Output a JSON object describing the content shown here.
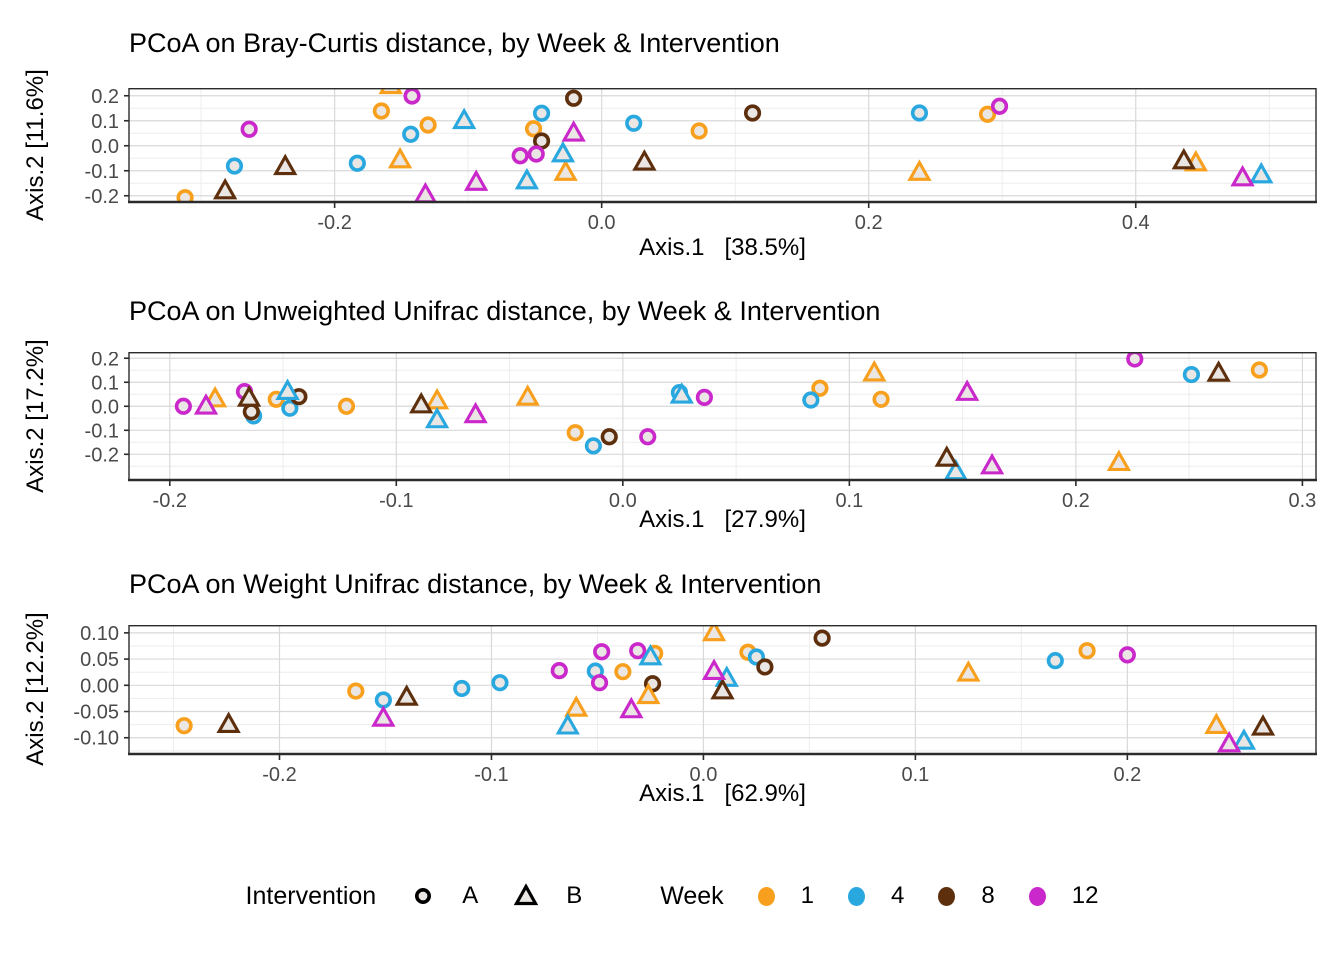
{
  "figure": {
    "background": "#ffffff",
    "marker_fill": "#e9e6e3",
    "grid_major_color": "#d9d9d9",
    "grid_minor_color": "#ededed",
    "panel_border_color": "#2b2b2b",
    "tick_label_color": "#4a4a4a"
  },
  "legend": {
    "intervention_title": "Intervention",
    "a_label": "A",
    "b_label": "B",
    "week_title": "Week",
    "week_items": [
      {
        "label": "1",
        "color": "#f8a01d"
      },
      {
        "label": "4",
        "color": "#29a8e0"
      },
      {
        "label": "8",
        "color": "#5d2f0d"
      },
      {
        "label": "12",
        "color": "#ca28ca"
      }
    ]
  },
  "chart_data": [
    {
      "type": "scatter",
      "title": "PCoA on Bray-Curtis distance, by Week & Intervention",
      "xlabel": "Axis.1   [38.5%]",
      "ylabel": "Axis.2   [11.6%]",
      "xlim": [
        -0.354,
        0.535
      ],
      "ylim": [
        -0.225,
        0.231
      ],
      "xticks": [
        {
          "v": -0.2,
          "label": "-0.2"
        },
        {
          "v": 0.0,
          "label": "0.0"
        },
        {
          "v": 0.2,
          "label": "0.2"
        },
        {
          "v": 0.4,
          "label": "0.4"
        }
      ],
      "yticks": [
        {
          "v": 0.2,
          "label": "0.2"
        },
        {
          "v": 0.1,
          "label": "0.1"
        },
        {
          "v": 0.0,
          "label": "0.0"
        },
        {
          "v": -0.1,
          "label": "-0.1"
        },
        {
          "v": -0.2,
          "label": "-0.2"
        }
      ],
      "legend_position": "bottom-shared",
      "grid": true,
      "points": [
        {
          "x": -0.312,
          "y": -0.208,
          "week": "1",
          "intervention": "A"
        },
        {
          "x": -0.165,
          "y": 0.139,
          "week": "1",
          "intervention": "A"
        },
        {
          "x": -0.13,
          "y": 0.083,
          "week": "1",
          "intervention": "A"
        },
        {
          "x": -0.051,
          "y": 0.068,
          "week": "1",
          "intervention": "A"
        },
        {
          "x": 0.073,
          "y": 0.059,
          "week": "1",
          "intervention": "A"
        },
        {
          "x": 0.289,
          "y": 0.126,
          "week": "1",
          "intervention": "A"
        },
        {
          "x": -0.275,
          "y": -0.081,
          "week": "4",
          "intervention": "A"
        },
        {
          "x": -0.183,
          "y": -0.07,
          "week": "4",
          "intervention": "A"
        },
        {
          "x": -0.143,
          "y": 0.046,
          "week": "4",
          "intervention": "A"
        },
        {
          "x": -0.045,
          "y": 0.13,
          "week": "4",
          "intervention": "A"
        },
        {
          "x": 0.024,
          "y": 0.09,
          "week": "4",
          "intervention": "A"
        },
        {
          "x": 0.238,
          "y": 0.131,
          "week": "4",
          "intervention": "A"
        },
        {
          "x": -0.045,
          "y": 0.019,
          "week": "8",
          "intervention": "A"
        },
        {
          "x": -0.021,
          "y": 0.19,
          "week": "8",
          "intervention": "A"
        },
        {
          "x": 0.113,
          "y": 0.131,
          "week": "8",
          "intervention": "A"
        },
        {
          "x": -0.264,
          "y": 0.066,
          "week": "12",
          "intervention": "A"
        },
        {
          "x": -0.142,
          "y": 0.199,
          "week": "12",
          "intervention": "A"
        },
        {
          "x": -0.061,
          "y": -0.04,
          "week": "12",
          "intervention": "A"
        },
        {
          "x": -0.049,
          "y": -0.033,
          "week": "12",
          "intervention": "A"
        },
        {
          "x": 0.298,
          "y": 0.158,
          "week": "12",
          "intervention": "A"
        },
        {
          "x": -0.158,
          "y": 0.24,
          "week": "1",
          "intervention": "B"
        },
        {
          "x": -0.151,
          "y": -0.057,
          "week": "1",
          "intervention": "B"
        },
        {
          "x": -0.027,
          "y": -0.107,
          "week": "1",
          "intervention": "B"
        },
        {
          "x": 0.238,
          "y": -0.107,
          "week": "1",
          "intervention": "B"
        },
        {
          "x": 0.445,
          "y": -0.069,
          "week": "1",
          "intervention": "B"
        },
        {
          "x": -0.103,
          "y": 0.1,
          "week": "4",
          "intervention": "B"
        },
        {
          "x": -0.056,
          "y": -0.141,
          "week": "4",
          "intervention": "B"
        },
        {
          "x": -0.029,
          "y": -0.033,
          "week": "4",
          "intervention": "B"
        },
        {
          "x": 0.494,
          "y": -0.117,
          "week": "4",
          "intervention": "B"
        },
        {
          "x": -0.282,
          "y": -0.181,
          "week": "8",
          "intervention": "B"
        },
        {
          "x": -0.237,
          "y": -0.084,
          "week": "8",
          "intervention": "B"
        },
        {
          "x": 0.032,
          "y": -0.066,
          "week": "8",
          "intervention": "B"
        },
        {
          "x": 0.436,
          "y": -0.061,
          "week": "8",
          "intervention": "B"
        },
        {
          "x": -0.132,
          "y": -0.197,
          "week": "12",
          "intervention": "B"
        },
        {
          "x": -0.094,
          "y": -0.147,
          "week": "12",
          "intervention": "B"
        },
        {
          "x": -0.021,
          "y": 0.05,
          "week": "12",
          "intervention": "B"
        },
        {
          "x": 0.48,
          "y": -0.129,
          "week": "12",
          "intervention": "B"
        }
      ]
    },
    {
      "type": "scatter",
      "title": "PCoA on Unweighted Unifrac distance, by Week & Intervention",
      "xlabel": "Axis.1   [27.9%]",
      "ylabel": "Axis.2   [17.2%]",
      "xlim": [
        -0.218,
        0.306
      ],
      "ylim": [
        -0.307,
        0.226
      ],
      "xticks": [
        {
          "v": -0.2,
          "label": "-0.2"
        },
        {
          "v": -0.1,
          "label": "-0.1"
        },
        {
          "v": 0.0,
          "label": "0.0"
        },
        {
          "v": 0.1,
          "label": "0.1"
        },
        {
          "v": 0.2,
          "label": "0.2"
        },
        {
          "v": 0.3,
          "label": "0.3"
        }
      ],
      "yticks": [
        {
          "v": 0.2,
          "label": "0.2"
        },
        {
          "v": 0.1,
          "label": "0.1"
        },
        {
          "v": 0.0,
          "label": "0.0"
        },
        {
          "v": -0.1,
          "label": "-0.1"
        },
        {
          "v": -0.2,
          "label": "-0.2"
        }
      ],
      "legend_position": "bottom-shared",
      "grid": true,
      "points": [
        {
          "x": -0.153,
          "y": 0.029,
          "week": "1",
          "intervention": "A"
        },
        {
          "x": -0.122,
          "y": 0.0,
          "week": "1",
          "intervention": "A"
        },
        {
          "x": -0.021,
          "y": -0.11,
          "week": "1",
          "intervention": "A"
        },
        {
          "x": 0.087,
          "y": 0.075,
          "week": "1",
          "intervention": "A"
        },
        {
          "x": 0.114,
          "y": 0.029,
          "week": "1",
          "intervention": "A"
        },
        {
          "x": 0.281,
          "y": 0.151,
          "week": "1",
          "intervention": "A"
        },
        {
          "x": -0.163,
          "y": -0.04,
          "week": "4",
          "intervention": "A"
        },
        {
          "x": -0.147,
          "y": -0.008,
          "week": "4",
          "intervention": "A"
        },
        {
          "x": -0.013,
          "y": -0.165,
          "week": "4",
          "intervention": "A"
        },
        {
          "x": 0.025,
          "y": 0.057,
          "week": "4",
          "intervention": "A"
        },
        {
          "x": 0.083,
          "y": 0.026,
          "week": "4",
          "intervention": "A"
        },
        {
          "x": 0.251,
          "y": 0.132,
          "week": "4",
          "intervention": "A"
        },
        {
          "x": -0.164,
          "y": -0.023,
          "week": "8",
          "intervention": "A"
        },
        {
          "x": -0.143,
          "y": 0.04,
          "week": "8",
          "intervention": "A"
        },
        {
          "x": -0.006,
          "y": -0.127,
          "week": "8",
          "intervention": "A"
        },
        {
          "x": -0.194,
          "y": 0.0,
          "week": "12",
          "intervention": "A"
        },
        {
          "x": -0.167,
          "y": 0.061,
          "week": "12",
          "intervention": "A"
        },
        {
          "x": 0.011,
          "y": -0.127,
          "week": "12",
          "intervention": "A"
        },
        {
          "x": 0.036,
          "y": 0.037,
          "week": "12",
          "intervention": "A"
        },
        {
          "x": 0.226,
          "y": 0.197,
          "week": "12",
          "intervention": "A"
        },
        {
          "x": -0.18,
          "y": 0.03,
          "week": "1",
          "intervention": "B"
        },
        {
          "x": -0.082,
          "y": 0.022,
          "week": "1",
          "intervention": "B"
        },
        {
          "x": -0.042,
          "y": 0.037,
          "week": "1",
          "intervention": "B"
        },
        {
          "x": 0.111,
          "y": 0.138,
          "week": "1",
          "intervention": "B"
        },
        {
          "x": 0.219,
          "y": -0.235,
          "week": "1",
          "intervention": "B"
        },
        {
          "x": -0.148,
          "y": 0.061,
          "week": "4",
          "intervention": "B"
        },
        {
          "x": -0.082,
          "y": -0.057,
          "week": "4",
          "intervention": "B"
        },
        {
          "x": 0.026,
          "y": 0.046,
          "week": "4",
          "intervention": "B"
        },
        {
          "x": 0.147,
          "y": -0.273,
          "week": "4",
          "intervention": "B"
        },
        {
          "x": -0.165,
          "y": 0.033,
          "week": "8",
          "intervention": "B"
        },
        {
          "x": -0.089,
          "y": 0.005,
          "week": "8",
          "intervention": "B"
        },
        {
          "x": 0.143,
          "y": -0.217,
          "week": "8",
          "intervention": "B"
        },
        {
          "x": 0.263,
          "y": 0.137,
          "week": "8",
          "intervention": "B"
        },
        {
          "x": -0.184,
          "y": 0.0,
          "week": "12",
          "intervention": "B"
        },
        {
          "x": -0.065,
          "y": -0.036,
          "week": "12",
          "intervention": "B"
        },
        {
          "x": 0.152,
          "y": 0.057,
          "week": "12",
          "intervention": "B"
        },
        {
          "x": 0.163,
          "y": -0.249,
          "week": "12",
          "intervention": "B"
        }
      ]
    },
    {
      "type": "scatter",
      "title": "PCoA on Weight Unifrac distance, by Week & Intervention",
      "xlabel": "Axis.1   [62.9%]",
      "ylabel": "Axis.2   [12.2%]",
      "xlim": [
        -0.271,
        0.289
      ],
      "ylim": [
        -0.131,
        0.115
      ],
      "xticks": [
        {
          "v": -0.2,
          "label": "-0.2"
        },
        {
          "v": -0.1,
          "label": "-0.1"
        },
        {
          "v": 0.0,
          "label": "0.0"
        },
        {
          "v": 0.1,
          "label": "0.1"
        },
        {
          "v": 0.2,
          "label": "0.2"
        }
      ],
      "yticks": [
        {
          "v": 0.1,
          "label": "0.10"
        },
        {
          "v": 0.05,
          "label": "0.05"
        },
        {
          "v": 0.0,
          "label": "0.00"
        },
        {
          "v": -0.05,
          "label": "-0.05"
        },
        {
          "v": -0.1,
          "label": "-0.10"
        }
      ],
      "legend_position": "bottom-shared",
      "grid": true,
      "points": [
        {
          "x": -0.245,
          "y": -0.077,
          "week": "1",
          "intervention": "A"
        },
        {
          "x": -0.164,
          "y": -0.011,
          "week": "1",
          "intervention": "A"
        },
        {
          "x": -0.038,
          "y": 0.026,
          "week": "1",
          "intervention": "A"
        },
        {
          "x": -0.023,
          "y": 0.061,
          "week": "1",
          "intervention": "A"
        },
        {
          "x": 0.021,
          "y": 0.063,
          "week": "1",
          "intervention": "A"
        },
        {
          "x": 0.181,
          "y": 0.066,
          "week": "1",
          "intervention": "A"
        },
        {
          "x": -0.151,
          "y": -0.028,
          "week": "4",
          "intervention": "A"
        },
        {
          "x": -0.114,
          "y": -0.006,
          "week": "4",
          "intervention": "A"
        },
        {
          "x": -0.096,
          "y": 0.005,
          "week": "4",
          "intervention": "A"
        },
        {
          "x": -0.051,
          "y": 0.027,
          "week": "4",
          "intervention": "A"
        },
        {
          "x": 0.025,
          "y": 0.054,
          "week": "4",
          "intervention": "A"
        },
        {
          "x": 0.166,
          "y": 0.047,
          "week": "4",
          "intervention": "A"
        },
        {
          "x": -0.024,
          "y": 0.003,
          "week": "8",
          "intervention": "A"
        },
        {
          "x": 0.029,
          "y": 0.035,
          "week": "8",
          "intervention": "A"
        },
        {
          "x": 0.056,
          "y": 0.09,
          "week": "8",
          "intervention": "A"
        },
        {
          "x": -0.068,
          "y": 0.028,
          "week": "12",
          "intervention": "A"
        },
        {
          "x": -0.048,
          "y": 0.064,
          "week": "12",
          "intervention": "A"
        },
        {
          "x": -0.049,
          "y": 0.005,
          "week": "12",
          "intervention": "A"
        },
        {
          "x": -0.031,
          "y": 0.066,
          "week": "12",
          "intervention": "A"
        },
        {
          "x": 0.2,
          "y": 0.058,
          "week": "12",
          "intervention": "A"
        },
        {
          "x": -0.06,
          "y": -0.044,
          "week": "1",
          "intervention": "B"
        },
        {
          "x": -0.026,
          "y": -0.02,
          "week": "1",
          "intervention": "B"
        },
        {
          "x": 0.005,
          "y": 0.1,
          "week": "1",
          "intervention": "B"
        },
        {
          "x": 0.125,
          "y": 0.023,
          "week": "1",
          "intervention": "B"
        },
        {
          "x": 0.242,
          "y": -0.077,
          "week": "1",
          "intervention": "B"
        },
        {
          "x": -0.064,
          "y": -0.078,
          "week": "4",
          "intervention": "B"
        },
        {
          "x": -0.025,
          "y": 0.054,
          "week": "4",
          "intervention": "B"
        },
        {
          "x": 0.011,
          "y": 0.013,
          "week": "4",
          "intervention": "B"
        },
        {
          "x": 0.255,
          "y": -0.107,
          "week": "4",
          "intervention": "B"
        },
        {
          "x": -0.224,
          "y": -0.075,
          "week": "8",
          "intervention": "B"
        },
        {
          "x": -0.14,
          "y": -0.023,
          "week": "8",
          "intervention": "B"
        },
        {
          "x": 0.009,
          "y": -0.011,
          "week": "8",
          "intervention": "B"
        },
        {
          "x": 0.264,
          "y": -0.08,
          "week": "8",
          "intervention": "B"
        },
        {
          "x": -0.151,
          "y": -0.063,
          "week": "12",
          "intervention": "B"
        },
        {
          "x": -0.034,
          "y": -0.047,
          "week": "12",
          "intervention": "B"
        },
        {
          "x": 0.005,
          "y": 0.026,
          "week": "12",
          "intervention": "B"
        },
        {
          "x": 0.248,
          "y": -0.112,
          "week": "12",
          "intervention": "B"
        }
      ]
    }
  ]
}
